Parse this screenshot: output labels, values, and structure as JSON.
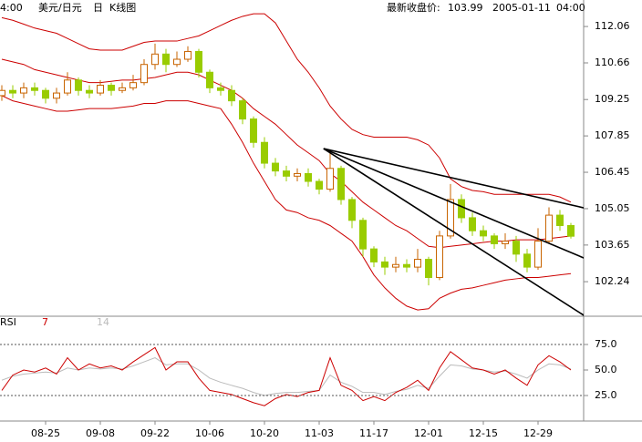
{
  "chart_data": {
    "type": "candlestick",
    "left_time": "4:00",
    "title": "美元/日元",
    "period": "日",
    "kind": "K线图",
    "close_label": "最新收盘价:",
    "close_value": 103.99,
    "date": "2005-01-11",
    "time": "04:00",
    "categories": [
      null,
      null,
      null,
      null,
      "08-25",
      null,
      null,
      null,
      null,
      "09-08",
      null,
      null,
      null,
      null,
      "09-22",
      null,
      null,
      null,
      null,
      "10-06",
      null,
      null,
      null,
      null,
      "10-20",
      null,
      null,
      null,
      null,
      "11-03",
      null,
      null,
      null,
      null,
      "11-17",
      null,
      null,
      null,
      null,
      "12-01",
      null,
      null,
      null,
      null,
      "12-15",
      null,
      null,
      null,
      null,
      "12-29",
      null,
      null,
      null
    ],
    "open": [
      109.4,
      109.6,
      109.5,
      109.7,
      109.6,
      109.3,
      109.5,
      110.0,
      109.6,
      109.5,
      109.8,
      109.6,
      109.7,
      109.9,
      110.6,
      111.0,
      110.6,
      110.8,
      111.1,
      110.3,
      109.7,
      109.6,
      109.2,
      108.5,
      107.6,
      106.8,
      106.5,
      106.3,
      106.4,
      106.1,
      105.8,
      106.6,
      105.4,
      104.6,
      103.5,
      103.0,
      102.8,
      102.9,
      102.8,
      103.1,
      102.4,
      104.0,
      105.4,
      104.7,
      104.2,
      104.0,
      103.7,
      103.8,
      103.3,
      102.8,
      103.8,
      104.8,
      104.4
    ],
    "high": [
      109.8,
      109.8,
      109.9,
      109.9,
      109.7,
      109.7,
      110.3,
      110.1,
      109.8,
      110.0,
      109.9,
      109.9,
      110.2,
      110.8,
      111.4,
      111.2,
      111.1,
      111.3,
      111.2,
      110.4,
      109.9,
      109.8,
      109.3,
      108.6,
      107.8,
      107.0,
      106.7,
      106.6,
      106.6,
      106.2,
      107.2,
      106.7,
      105.5,
      104.7,
      103.6,
      103.2,
      103.2,
      103.1,
      103.5,
      103.2,
      104.2,
      106.0,
      105.6,
      104.9,
      104.4,
      104.1,
      104.1,
      104.0,
      103.5,
      104.3,
      105.1,
      105.0,
      104.5
    ],
    "low": [
      109.2,
      109.3,
      109.3,
      109.4,
      109.1,
      109.1,
      109.4,
      109.4,
      109.3,
      109.4,
      109.4,
      109.5,
      109.6,
      109.8,
      110.4,
      110.3,
      110.5,
      110.7,
      110.1,
      109.5,
      109.4,
      109.0,
      108.3,
      107.4,
      106.6,
      106.3,
      106.1,
      106.1,
      105.9,
      105.6,
      105.7,
      105.2,
      104.3,
      103.2,
      102.8,
      102.5,
      102.6,
      102.6,
      102.6,
      102.1,
      102.3,
      103.9,
      104.5,
      104.0,
      103.8,
      103.5,
      103.5,
      103.0,
      102.6,
      102.7,
      103.7,
      104.2,
      103.9
    ],
    "close": [
      109.6,
      109.5,
      109.7,
      109.6,
      109.3,
      109.5,
      110.0,
      109.6,
      109.5,
      109.8,
      109.6,
      109.7,
      109.9,
      110.6,
      111.0,
      110.6,
      110.8,
      111.1,
      110.3,
      109.7,
      109.6,
      109.2,
      108.5,
      107.6,
      106.8,
      106.5,
      106.3,
      106.4,
      106.1,
      105.8,
      106.6,
      105.4,
      104.6,
      103.5,
      103.0,
      102.8,
      102.9,
      102.8,
      103.1,
      102.4,
      104.0,
      105.4,
      104.7,
      104.2,
      104.0,
      103.7,
      103.8,
      103.3,
      102.8,
      103.8,
      104.8,
      104.4,
      103.99
    ],
    "up_color": "#c86400",
    "down_color": "#99cc00",
    "bands": {
      "color": "#cc0000",
      "upper": [
        112.4,
        112.3,
        112.15,
        112.0,
        111.9,
        111.8,
        111.6,
        111.4,
        111.2,
        111.15,
        111.15,
        111.15,
        111.3,
        111.45,
        111.5,
        111.5,
        111.5,
        111.6,
        111.7,
        111.9,
        112.1,
        112.3,
        112.45,
        112.55,
        112.55,
        112.2,
        111.5,
        110.8,
        110.3,
        109.7,
        109.0,
        108.5,
        108.1,
        107.9,
        107.8,
        107.8,
        107.8,
        107.8,
        107.7,
        107.5,
        107.0,
        106.2,
        105.9,
        105.75,
        105.7,
        105.6,
        105.6,
        105.6,
        105.6,
        105.6,
        105.6,
        105.5,
        105.3
      ],
      "middle": [
        110.8,
        110.7,
        110.6,
        110.4,
        110.3,
        110.2,
        110.1,
        110.0,
        109.9,
        109.9,
        109.95,
        110.0,
        110.0,
        110.05,
        110.1,
        110.2,
        110.3,
        110.3,
        110.2,
        110.0,
        109.8,
        109.6,
        109.3,
        108.9,
        108.6,
        108.3,
        107.9,
        107.5,
        107.2,
        106.9,
        106.4,
        106.1,
        105.7,
        105.3,
        105.0,
        104.7,
        104.4,
        104.2,
        103.9,
        103.6,
        103.55,
        103.6,
        103.65,
        103.7,
        103.75,
        103.8,
        103.8,
        103.85,
        103.85,
        103.85,
        103.9,
        103.95,
        104.0
      ],
      "lower": [
        109.4,
        109.2,
        109.1,
        109.0,
        108.9,
        108.8,
        108.8,
        108.85,
        108.9,
        108.9,
        108.9,
        108.95,
        109.0,
        109.1,
        109.1,
        109.2,
        109.2,
        109.2,
        109.1,
        109.0,
        108.9,
        108.3,
        107.6,
        106.8,
        106.1,
        105.4,
        105.0,
        104.9,
        104.7,
        104.6,
        104.4,
        104.1,
        103.8,
        103.2,
        102.5,
        102.0,
        101.6,
        101.3,
        101.15,
        101.2,
        101.6,
        101.8,
        101.95,
        102.0,
        102.1,
        102.2,
        102.3,
        102.35,
        102.4,
        102.4,
        102.45,
        102.5,
        102.55
      ]
    },
    "trendlines": [
      {
        "x": [
          29.4,
          53.2
        ],
        "y": [
          107.36,
          105.08
        ]
      },
      {
        "x": [
          29.4,
          53.2
        ],
        "y": [
          107.36,
          103.15
        ]
      },
      {
        "x": [
          29.4,
          53.2
        ],
        "y": [
          107.36,
          100.94
        ]
      }
    ],
    "ylim": [
      100.98,
      113.08
    ],
    "yticks": [
      112.06,
      110.66,
      109.25,
      107.85,
      106.45,
      105.05,
      103.65,
      102.24
    ],
    "rsi": {
      "label": "RSI",
      "ylim": [
        0,
        100
      ],
      "yticks": [
        25.0,
        50.0,
        75.0
      ],
      "guides": [
        25,
        75
      ],
      "series": [
        {
          "name": "7",
          "color": "#cc0000",
          "values": [
            30,
            45,
            50,
            48,
            52,
            46,
            62,
            50,
            56,
            52,
            54,
            50,
            58,
            65,
            72,
            50,
            58,
            58,
            42,
            30,
            28,
            26,
            22,
            18,
            15,
            22,
            26,
            24,
            28,
            30,
            62,
            35,
            30,
            20,
            24,
            20,
            28,
            33,
            40,
            30,
            52,
            68,
            60,
            52,
            50,
            46,
            50,
            42,
            35,
            55,
            64,
            58,
            50
          ]
        },
        {
          "name": "14",
          "color": "#bbbbbb",
          "values": [
            40,
            44,
            46,
            47,
            48,
            47,
            52,
            50,
            52,
            51,
            52,
            51,
            54,
            58,
            62,
            55,
            56,
            56,
            50,
            42,
            38,
            35,
            32,
            28,
            25,
            27,
            28,
            28,
            29,
            30,
            45,
            38,
            34,
            28,
            28,
            26,
            29,
            31,
            35,
            32,
            44,
            55,
            54,
            51,
            50,
            48,
            49,
            46,
            42,
            50,
            56,
            55,
            51
          ]
        }
      ]
    }
  }
}
